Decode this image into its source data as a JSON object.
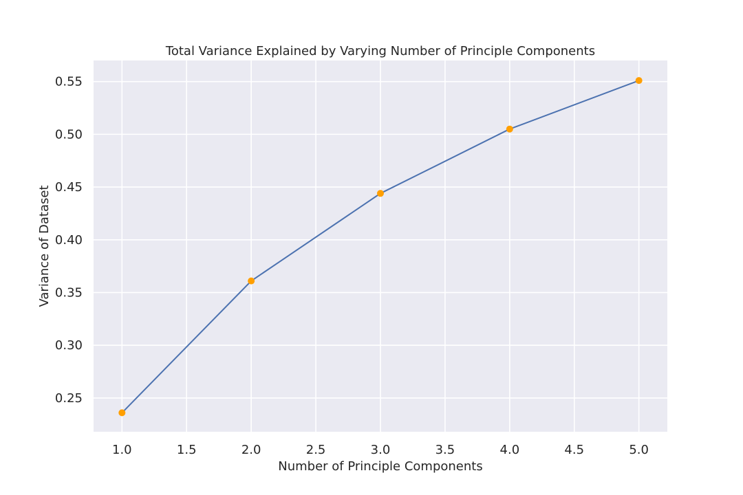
{
  "chart_data": {
    "type": "line",
    "title": "Total Variance Explained by Varying Number of Principle Components",
    "xlabel": "Number of Principle Components",
    "ylabel": "Variance of Dataset",
    "xlim": [
      0.78,
      5.22
    ],
    "ylim": [
      0.218,
      0.57
    ],
    "xticks": [
      1.0,
      1.5,
      2.0,
      2.5,
      3.0,
      3.5,
      4.0,
      4.5,
      5.0
    ],
    "xtick_labels": [
      "1.0",
      "1.5",
      "2.0",
      "2.5",
      "3.0",
      "3.5",
      "4.0",
      "4.5",
      "5.0"
    ],
    "yticks": [
      0.25,
      0.3,
      0.35,
      0.4,
      0.45,
      0.5,
      0.55
    ],
    "ytick_labels": [
      "0.25",
      "0.30",
      "0.35",
      "0.40",
      "0.45",
      "0.50",
      "0.55"
    ],
    "grid": true,
    "colors": {
      "background": "#eaeaf2",
      "grid": "#ffffff",
      "line": "#4c72b0",
      "markers": "#ff9f00"
    },
    "series": [
      {
        "x": [
          1,
          2,
          3,
          4,
          5
        ],
        "values": [
          0.236,
          0.361,
          0.444,
          0.505,
          0.551
        ]
      }
    ]
  }
}
